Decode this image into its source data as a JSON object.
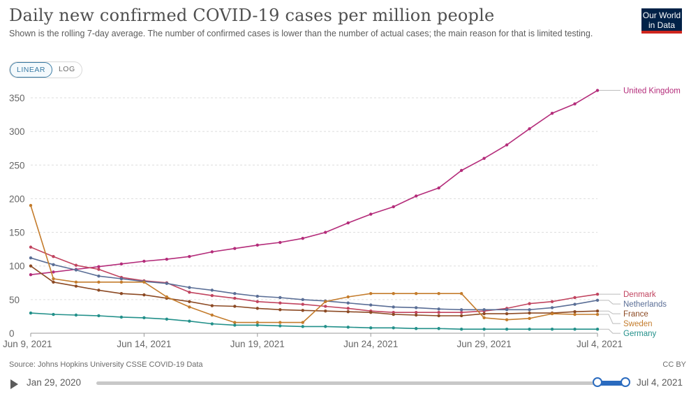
{
  "header": {
    "title": "Daily new confirmed COVID-19 cases per million people",
    "subtitle": "Shown is the rolling 7-day average. The number of confirmed cases is lower than the number of actual cases; the main reason for that is limited testing.",
    "logo_text_line1": "Our World",
    "logo_text_line2": "in Data"
  },
  "controls": {
    "linear_label": "LINEAR",
    "log_label": "LOG"
  },
  "footer": {
    "source": "Source: Johns Hopkins University CSSE COVID-19 Data",
    "license": "CC BY"
  },
  "timeline": {
    "start_label": "Jan 29, 2020",
    "end_label": "Jul 4, 2021"
  },
  "chart_data": {
    "type": "line",
    "ylim": [
      0,
      360
    ],
    "yticks": [
      0,
      50,
      100,
      150,
      200,
      250,
      300,
      350
    ],
    "x": [
      "2021-06-09",
      "2021-06-10",
      "2021-06-11",
      "2021-06-12",
      "2021-06-13",
      "2021-06-14",
      "2021-06-15",
      "2021-06-16",
      "2021-06-17",
      "2021-06-18",
      "2021-06-19",
      "2021-06-20",
      "2021-06-21",
      "2021-06-22",
      "2021-06-23",
      "2021-06-24",
      "2021-06-25",
      "2021-06-26",
      "2021-06-27",
      "2021-06-28",
      "2021-06-29",
      "2021-06-30",
      "2021-07-01",
      "2021-07-02",
      "2021-07-03",
      "2021-07-04"
    ],
    "x_ticks": [
      {
        "date": "2021-06-09",
        "label": "Jun 9, 2021"
      },
      {
        "date": "2021-06-14",
        "label": "Jun 14, 2021"
      },
      {
        "date": "2021-06-19",
        "label": "Jun 19, 2021"
      },
      {
        "date": "2021-06-24",
        "label": "Jun 24, 2021"
      },
      {
        "date": "2021-06-29",
        "label": "Jun 29, 2021"
      },
      {
        "date": "2021-07-04",
        "label": "Jul 4, 2021"
      }
    ],
    "series": [
      {
        "name": "United Kingdom",
        "color": "#b42c7a",
        "values": [
          87,
          91,
          95,
          99,
          103,
          107,
          110,
          114,
          121,
          126,
          131,
          135,
          141,
          150,
          164,
          177,
          188,
          204,
          216,
          242,
          260,
          280,
          304,
          327,
          341,
          361
        ]
      },
      {
        "name": "Denmark",
        "color": "#c1445f",
        "values": [
          128,
          114,
          101,
          95,
          83,
          78,
          75,
          61,
          56,
          52,
          47,
          45,
          43,
          40,
          37,
          33,
          31,
          31,
          31,
          31,
          33,
          37,
          44,
          47,
          53,
          58
        ]
      },
      {
        "name": "Netherlands",
        "color": "#5a6e96",
        "values": [
          112,
          102,
          94,
          85,
          81,
          77,
          74,
          68,
          64,
          59,
          55,
          53,
          50,
          48,
          45,
          42,
          39,
          38,
          36,
          35,
          35,
          35,
          35,
          38,
          43,
          49
        ]
      },
      {
        "name": "France",
        "color": "#8c4a24",
        "values": [
          100,
          76,
          70,
          64,
          59,
          57,
          52,
          47,
          41,
          40,
          37,
          35,
          34,
          33,
          32,
          31,
          28,
          27,
          26,
          26,
          29,
          29,
          30,
          30,
          32,
          33
        ]
      },
      {
        "name": "Sweden",
        "color": "#c47c2c",
        "values": [
          190,
          81,
          76,
          76,
          76,
          76,
          54,
          39,
          27,
          16,
          16,
          16,
          16,
          47,
          54,
          59,
          59,
          59,
          59,
          59,
          23,
          20,
          22,
          29,
          28,
          28
        ]
      },
      {
        "name": "Germany",
        "color": "#22908a",
        "values": [
          30,
          28,
          27,
          26,
          24,
          23,
          21,
          18,
          14,
          12,
          12,
          11,
          10,
          10,
          9,
          8,
          8,
          7,
          7,
          6,
          6,
          6,
          6,
          6,
          6,
          6
        ]
      }
    ]
  }
}
